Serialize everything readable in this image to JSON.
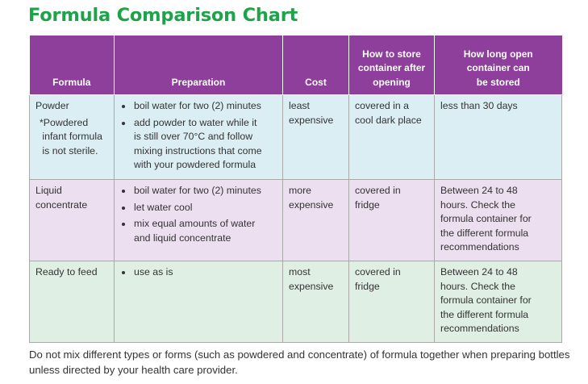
{
  "title": "Formula Comparison Chart",
  "table": {
    "headers": [
      "Formula",
      "Preparation",
      "Cost",
      "How to store container after opening",
      "How long open container can be stored"
    ],
    "rows": [
      {
        "formula": "Powder",
        "formula_note": "*Powdered infant formula is not sterile.",
        "preparation": [
          "boil water for two (2) minutes",
          "add powder to water while it is still over 70°C and follow mixing instructions that come with your powdered formula"
        ],
        "cost": "least expensive",
        "storage": "covered in a cool dark place",
        "duration": "less than 30 days"
      },
      {
        "formula": "Liquid concentrate",
        "preparation": [
          "boil water for two (2) minutes",
          "let water cool",
          "mix equal amounts of water and liquid concentrate"
        ],
        "cost": "more expensive",
        "storage": "covered in fridge",
        "duration": "Between 24 to 48 hours. Check the formula container for the different formula recommendations"
      },
      {
        "formula": "Ready to feed",
        "preparation": [
          "use as is"
        ],
        "cost": "most expensive",
        "storage": "covered in fridge",
        "duration": "Between 24 to 48 hours. Check the formula container for the different formula recommendations"
      }
    ]
  },
  "footer": "Do not mix different types or forms (such as powdered and concentrate) of formula together when preparing bottles unless directed by your health care provider.",
  "colors": {
    "title": "#1fa34a",
    "header_bg": "#8e3e9b",
    "row_powder_bg": "#dbeef3",
    "row_liquid_bg": "#ecdff0",
    "row_ready_bg": "#e0efe4"
  }
}
